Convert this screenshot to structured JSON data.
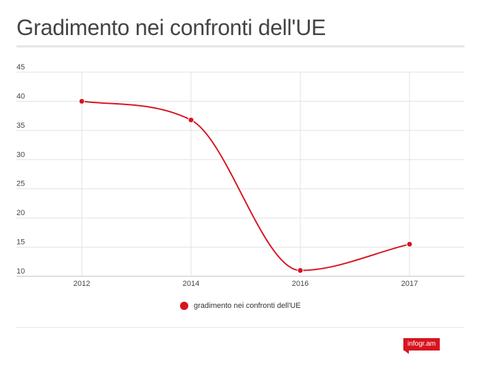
{
  "header": {
    "title": "Gradimento nei confronti dell'UE"
  },
  "chart_data": {
    "type": "line",
    "x": [
      "2012",
      "2014",
      "2016",
      "2017"
    ],
    "series": [
      {
        "name": "gradimento nei confronti dell'UE",
        "values": [
          40,
          36.8,
          11,
          15.5
        ],
        "color": "#d7141f"
      }
    ],
    "ylim": [
      10,
      45
    ],
    "yticks": [
      10,
      15,
      20,
      25,
      30,
      35,
      40,
      45
    ],
    "grid": true,
    "legend_position": "bottom",
    "xlabel": "",
    "ylabel": ""
  },
  "legend": {
    "label": "gradimento nei confronti dell'UE"
  },
  "brand": {
    "label": "infogr.am",
    "color": "#d7141f"
  }
}
